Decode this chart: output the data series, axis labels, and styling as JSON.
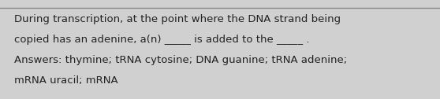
{
  "background_color": "#d0d0d0",
  "line_color": "#888888",
  "text_color": "#222222",
  "line1": "During transcription, at the point where the DNA strand being",
  "line2": "copied has an adenine, a(n) _____ is added to the _____ .",
  "line3": "Answers: thymine; tRNA cytosine; DNA guanine; tRNA adenine;",
  "line4": "mRNA uracil; mRNA",
  "font_size": 9.5,
  "fig_width": 5.58,
  "fig_height": 1.26,
  "dpi": 100
}
